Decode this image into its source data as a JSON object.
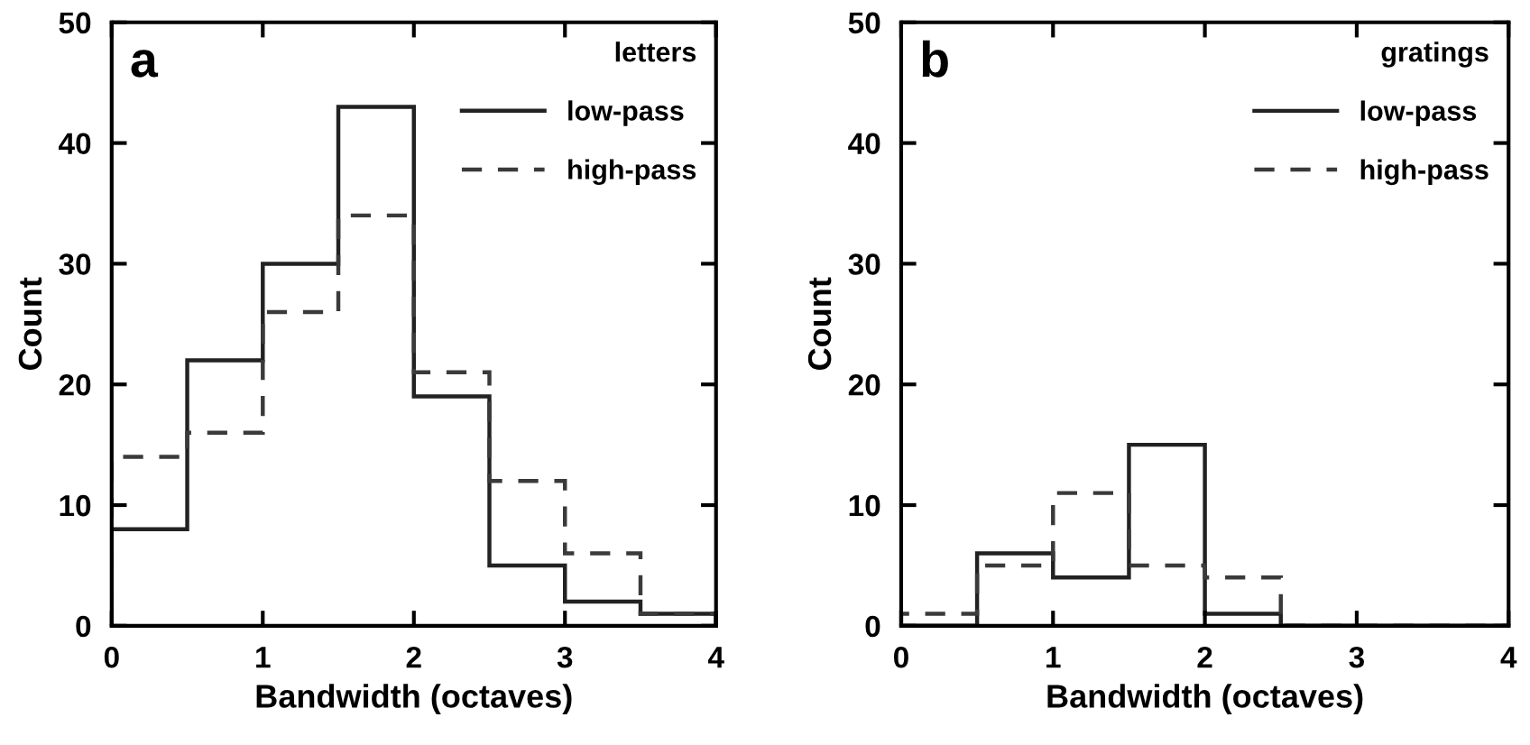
{
  "chart_data": [
    {
      "type": "histogram",
      "title": "a",
      "legend_title": "letters",
      "xlabel": "Bandwidth (octaves)",
      "ylabel": "Count",
      "bins": [
        0,
        0.5,
        1,
        1.5,
        2,
        2.5,
        3,
        3.5,
        4
      ],
      "series": [
        {
          "name": "low-pass",
          "color": "#222222",
          "line_style": "solid",
          "values": [
            8,
            22,
            30,
            43,
            19,
            5,
            2,
            1
          ]
        },
        {
          "name": "high-pass",
          "color": "#3a3a3a",
          "line_style": "dashed",
          "values": [
            14,
            16,
            26,
            34,
            21,
            12,
            6,
            1
          ]
        }
      ],
      "xlim": [
        0,
        4
      ],
      "ylim": [
        0,
        50
      ],
      "xticks": [
        0,
        1,
        2,
        3,
        4
      ],
      "yticks": [
        0,
        10,
        20,
        30,
        40,
        50
      ],
      "legend": "top right"
    },
    {
      "type": "histogram",
      "title": "b",
      "legend_title": "gratings",
      "xlabel": "Bandwidth (octaves)",
      "ylabel": "Count",
      "bins": [
        0,
        0.5,
        1,
        1.5,
        2,
        2.5,
        3,
        3.5,
        4
      ],
      "series": [
        {
          "name": "low-pass",
          "color": "#222222",
          "line_style": "solid",
          "values": [
            0,
            6,
            4,
            15,
            1,
            0,
            0,
            0
          ]
        },
        {
          "name": "high-pass",
          "color": "#3a3a3a",
          "line_style": "dashed",
          "values": [
            1,
            5,
            11,
            5,
            4,
            0,
            0,
            0
          ]
        }
      ],
      "xlim": [
        0,
        4
      ],
      "ylim": [
        0,
        50
      ],
      "xticks": [
        0,
        1,
        2,
        3,
        4
      ],
      "yticks": [
        0,
        10,
        20,
        30,
        40,
        50
      ],
      "legend": "top right"
    }
  ]
}
